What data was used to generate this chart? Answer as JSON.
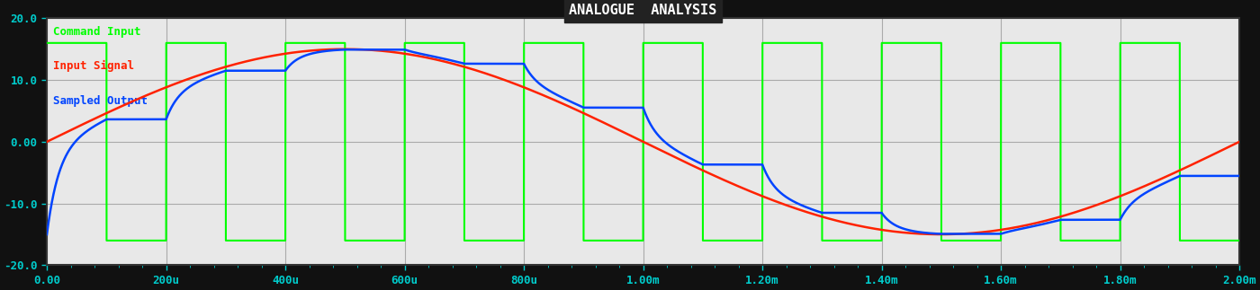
{
  "title": "ANALOGUE  ANALYSIS",
  "title_color": "#ffffff",
  "title_bg": "#222222",
  "bg_color": "#111111",
  "plot_bg": "#e8e8e8",
  "grid_color": "#aaaaaa",
  "legend": [
    "Command Input",
    "Input Signal",
    "Sampled Output"
  ],
  "legend_colors": [
    "#00ff00",
    "#ff2200",
    "#0044ff"
  ],
  "xmin": 0.0,
  "xmax": 0.002,
  "ymin": -20.0,
  "ymax": 20.0,
  "yticks": [
    -20.0,
    -10.0,
    0.0,
    10.0,
    20.0
  ],
  "ytick_labels": [
    "-20.0",
    "-10.0",
    "0.00",
    "10.0",
    "20.0"
  ],
  "xtick_vals": [
    0,
    0.0002,
    0.0004,
    0.0006,
    0.0008,
    0.001,
    0.0012,
    0.0014,
    0.0016,
    0.0018,
    0.002
  ],
  "xtick_labels": [
    "0.00",
    "200u",
    "400u",
    "600u",
    "800u",
    "1.00m",
    "1.20m",
    "1.40m",
    "1.60m",
    "1.80m",
    "2.00m"
  ],
  "sq_high": 16.0,
  "sq_low": -16.0,
  "sq_period": 0.0002,
  "sq_duty": 0.5,
  "sq_phase": 0.0001,
  "sine_amp": 15.0,
  "sine_freq": 500,
  "sine_phase": 0.0,
  "rc_time": 2e-05
}
